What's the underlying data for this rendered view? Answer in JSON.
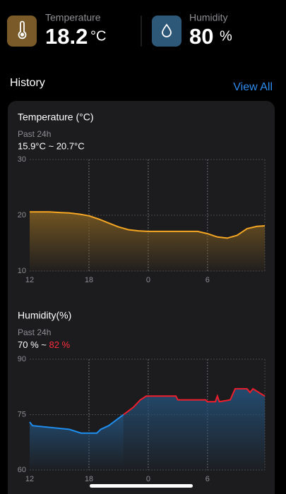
{
  "header": {
    "temperature": {
      "label": "Temperature",
      "value": "18.2",
      "unit": "°C"
    },
    "humidity": {
      "label": "Humidity",
      "value": "80",
      "unit": "%"
    }
  },
  "history": {
    "title": "History",
    "link": "View All"
  },
  "chart_data": [
    {
      "type": "line",
      "title": "Temperature (°C)",
      "subtitle": "Past 24h",
      "range": "15.9°C ~ 20.7°C",
      "area_color": "#7a5a22",
      "xlim": [
        0,
        23.8
      ],
      "xticks": [
        {
          "value": 0,
          "label": "12"
        },
        {
          "value": 6,
          "label": "18"
        },
        {
          "value": 12,
          "label": "0"
        },
        {
          "value": 18,
          "label": "6"
        }
      ],
      "ylim": [
        10,
        30
      ],
      "yticks": [
        10,
        20,
        30
      ],
      "grid": true,
      "series": [
        {
          "color": "#f5a623",
          "x": [
            0,
            1,
            2,
            3,
            4,
            5,
            6,
            7,
            8,
            9,
            10,
            11,
            12,
            13,
            14,
            15,
            16,
            17,
            18,
            19,
            20,
            21,
            22,
            23,
            23.8
          ],
          "values": [
            20.6,
            20.6,
            20.6,
            20.5,
            20.4,
            20.2,
            19.9,
            19.3,
            18.6,
            17.9,
            17.4,
            17.2,
            17.1,
            17.1,
            17.1,
            17.1,
            17.1,
            17.1,
            16.7,
            16.1,
            15.9,
            16.4,
            17.6,
            18.0,
            18.1
          ]
        }
      ]
    },
    {
      "type": "line",
      "title": "Humidity(%)",
      "subtitle": "Past 24h",
      "range_low": "70 %",
      "range_sep": "~",
      "range_high": "82 %",
      "range_high_color": "#ff2d3d",
      "area_color": "#245078",
      "xlim": [
        0,
        23.8
      ],
      "xticks": [
        {
          "value": 0,
          "label": "12"
        },
        {
          "value": 6,
          "label": "18"
        },
        {
          "value": 12,
          "label": "0"
        },
        {
          "value": 18,
          "label": "6"
        }
      ],
      "ylim": [
        60,
        90
      ],
      "yticks": [
        60,
        75,
        90
      ],
      "grid": true,
      "series": [
        {
          "color": "#1e8ef0",
          "x": [
            0,
            0.3,
            4,
            5.2,
            6.8,
            7.2,
            8,
            8.5,
            9,
            9.5
          ],
          "values": [
            73,
            72,
            71,
            70,
            70,
            71,
            72,
            73,
            74,
            75
          ]
        },
        {
          "color": "#f01e2c",
          "x": [
            9.5,
            10,
            10.5,
            11.2,
            11.8,
            14.8,
            15,
            17.8,
            18,
            18.8,
            19,
            19.2,
            20.3,
            20.8,
            22,
            22.3,
            22.6,
            23.2,
            23.8
          ],
          "values": [
            75,
            76,
            77,
            79,
            80,
            80,
            79,
            79,
            78.5,
            78.5,
            80,
            78.5,
            79,
            82,
            82,
            81,
            82,
            81,
            80
          ]
        }
      ]
    }
  ]
}
